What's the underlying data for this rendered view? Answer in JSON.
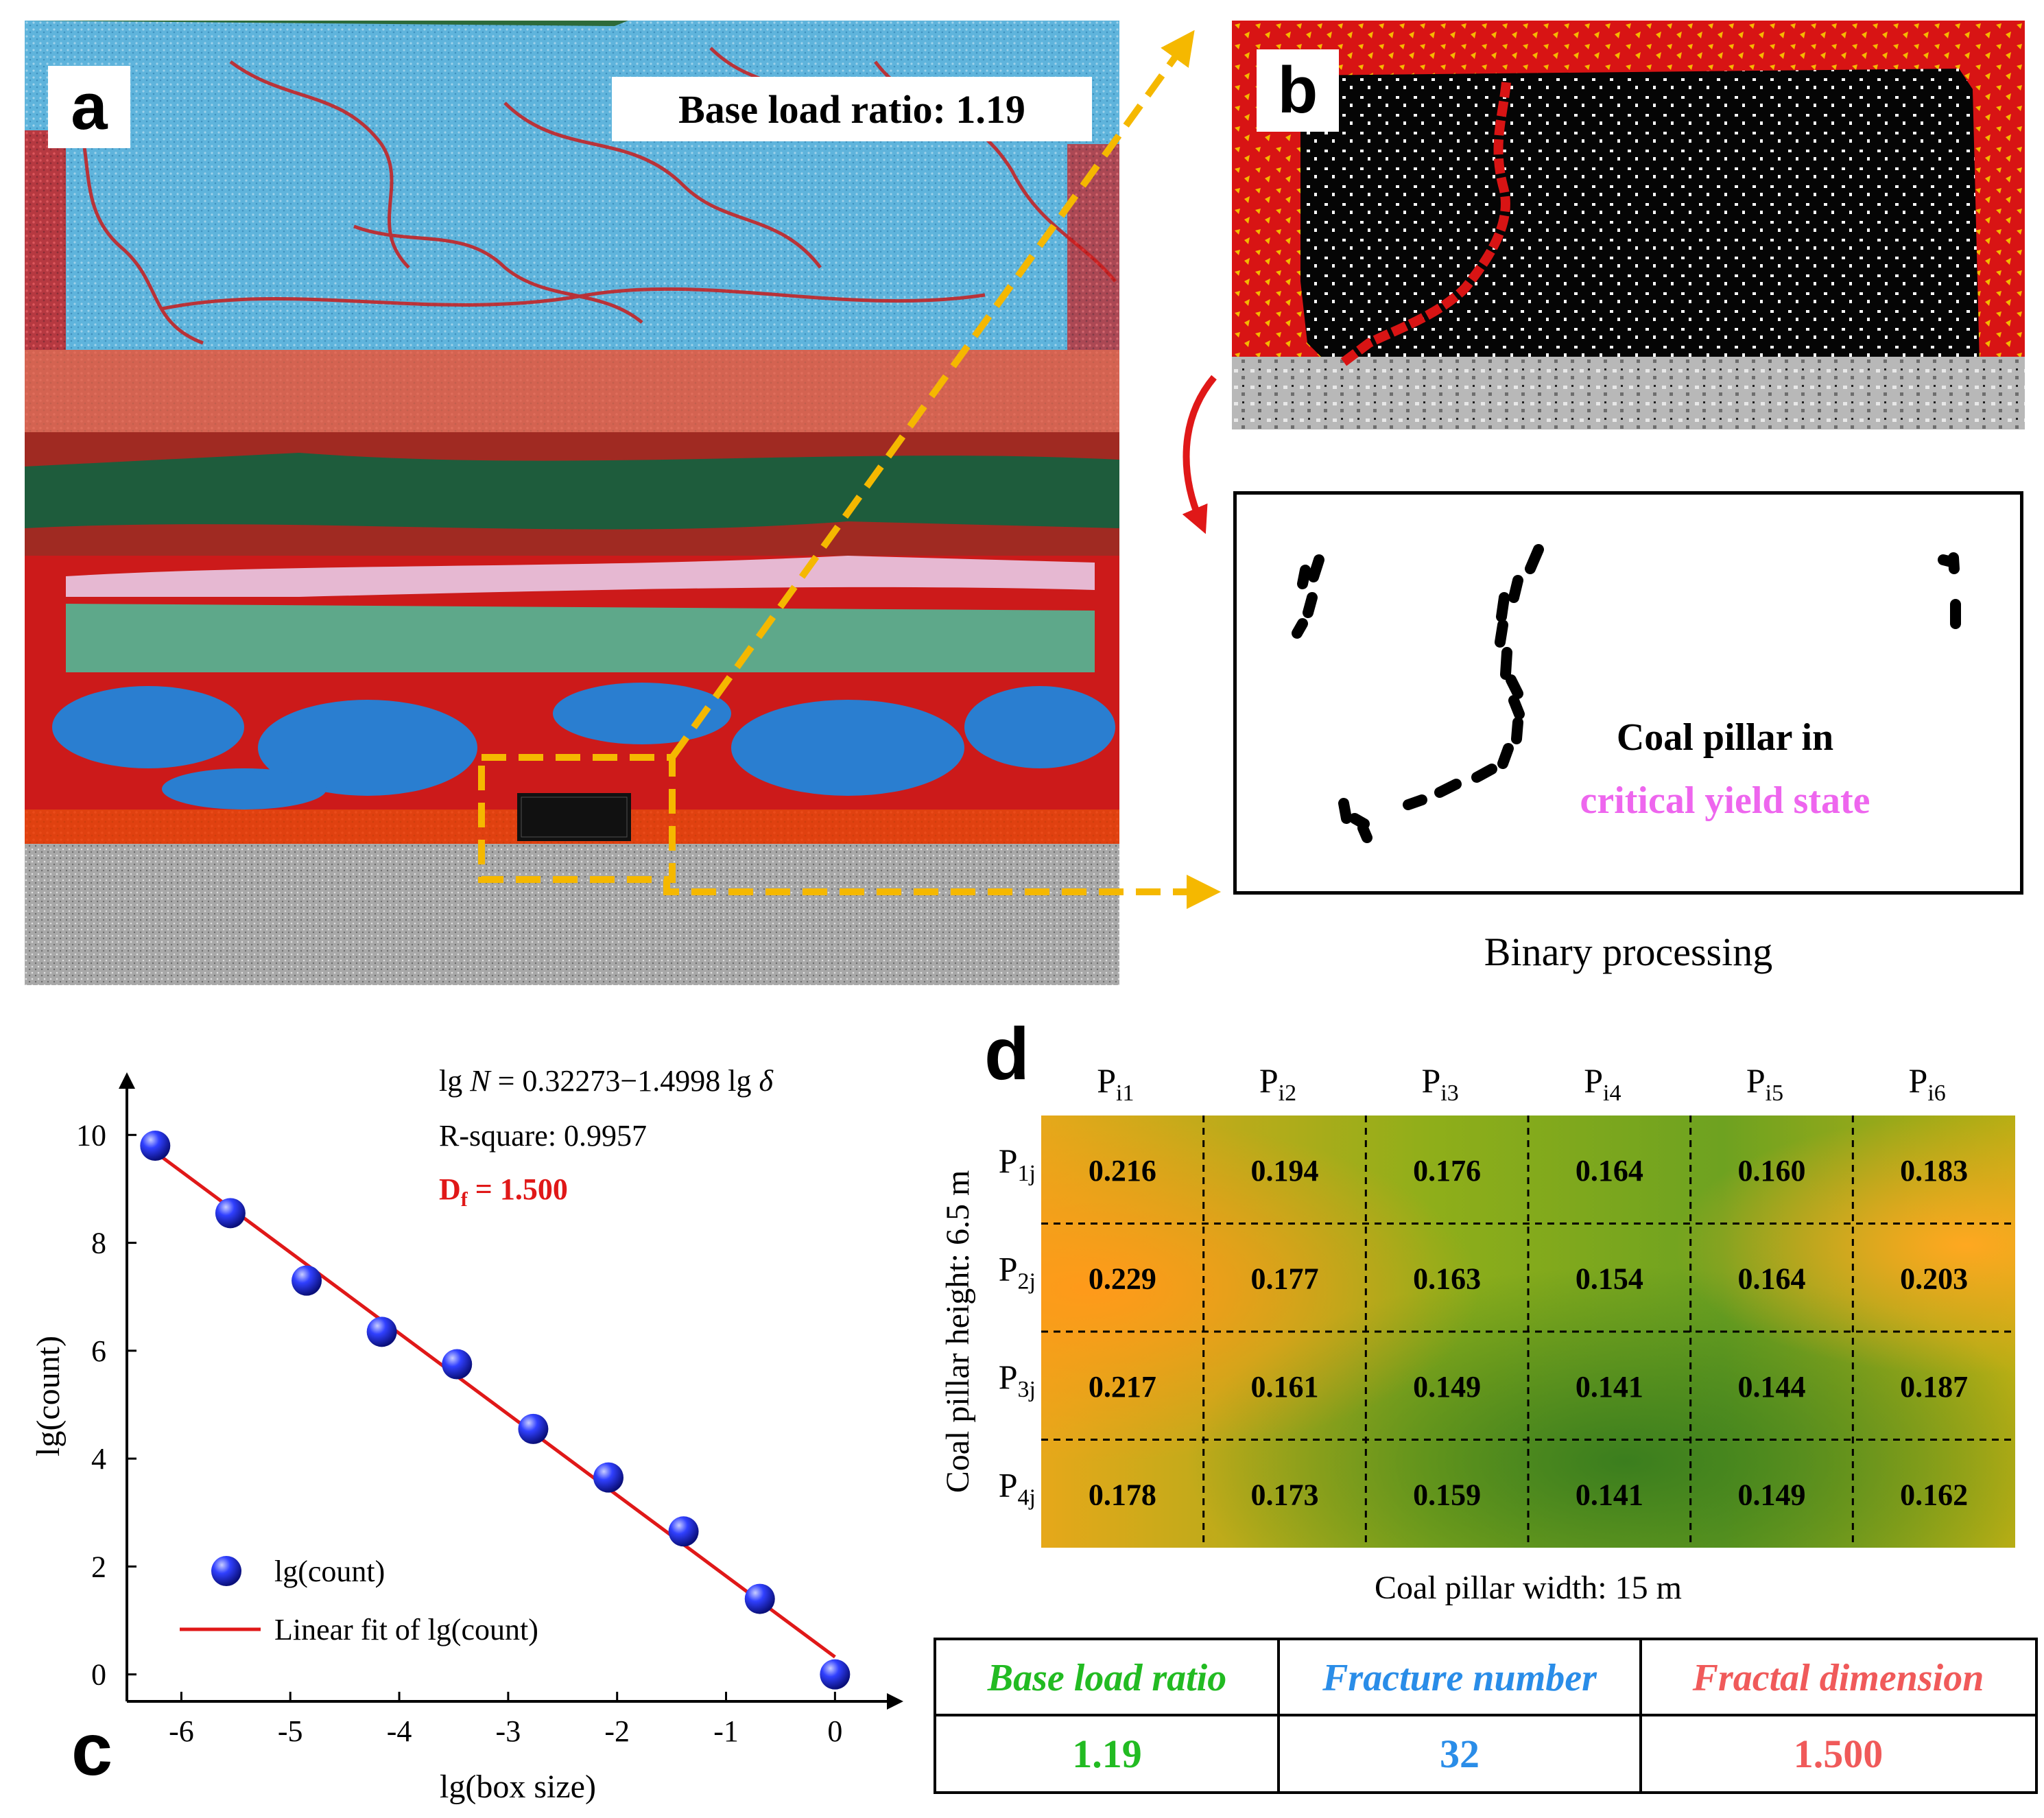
{
  "panel_a": {
    "letter": "a",
    "label": "Base load ratio: 1.19"
  },
  "panel_b": {
    "letter": "b",
    "binary_text_line1": "Coal pillar in",
    "binary_text_line2": "critical yield state",
    "caption": "Binary processing"
  },
  "panel_c": {
    "letter": "c",
    "equation_prefix": "lg ",
    "equation_N": "N",
    "equation_mid": " = 0.32273−1.4998 lg ",
    "equation_delta": "δ",
    "r_square": "R-square: 0.9957",
    "df_label_D": "D",
    "df_label_sub": "f",
    "df_label_value": " = 1.500"
  },
  "chart_data": {
    "type": "scatter",
    "title": "",
    "xlabel": "lg(box size)",
    "ylabel": "lg(count)",
    "xlim": [
      -6.5,
      0.3
    ],
    "ylim": [
      -0.5,
      10.5
    ],
    "xticks": [
      "-6",
      "-5",
      "-4",
      "-3",
      "-2",
      "-1",
      "0"
    ],
    "yticks": [
      "0",
      "2",
      "4",
      "6",
      "8",
      "10"
    ],
    "legend": [
      "lg(count)",
      "Linear fit of lg(count)"
    ],
    "legend_position": "bottom-left",
    "series": [
      {
        "name": "lg(count)",
        "x": [
          -6.24,
          -5.55,
          -4.85,
          -4.16,
          -3.47,
          -2.77,
          -2.08,
          -1.39,
          -0.69,
          0.0
        ],
        "y": [
          9.8,
          8.55,
          7.3,
          6.35,
          5.75,
          4.55,
          3.65,
          2.65,
          1.4,
          0.0
        ]
      },
      {
        "name": "Linear fit of lg(count)",
        "intercept": 0.32273,
        "slope": -1.4998
      }
    ]
  },
  "panel_d": {
    "letter": "d",
    "col_headers": [
      {
        "main": "P",
        "sub": "i1"
      },
      {
        "main": "P",
        "sub": "i2"
      },
      {
        "main": "P",
        "sub": "i3"
      },
      {
        "main": "P",
        "sub": "i4"
      },
      {
        "main": "P",
        "sub": "i5"
      },
      {
        "main": "P",
        "sub": "i6"
      }
    ],
    "row_headers": [
      {
        "main": "P",
        "sub": "1j"
      },
      {
        "main": "P",
        "sub": "2j"
      },
      {
        "main": "P",
        "sub": "3j"
      },
      {
        "main": "P",
        "sub": "4j"
      }
    ],
    "values": [
      [
        "0.216",
        "0.194",
        "0.176",
        "0.164",
        "0.160",
        "0.183"
      ],
      [
        "0.229",
        "0.177",
        "0.163",
        "0.154",
        "0.164",
        "0.203"
      ],
      [
        "0.217",
        "0.161",
        "0.149",
        "0.141",
        "0.144",
        "0.187"
      ],
      [
        "0.178",
        "0.173",
        "0.159",
        "0.141",
        "0.149",
        "0.162"
      ]
    ],
    "y_axis_label": "Coal pillar height: 6.5 m",
    "x_axis_label": "Coal pillar width: 15 m"
  },
  "summary_table": {
    "headers": [
      "Base load ratio",
      "Fracture number",
      "Fractal dimension"
    ],
    "values": [
      "1.19",
      "32",
      "1.500"
    ],
    "colors": [
      "#22bb22",
      "#2a8de8",
      "#f05a5a"
    ]
  },
  "colors": {
    "accent_yellow": "#f5b800",
    "red_arrow": "#e01818",
    "fit_line": "#e01818",
    "marker": "#1a2ad8"
  }
}
